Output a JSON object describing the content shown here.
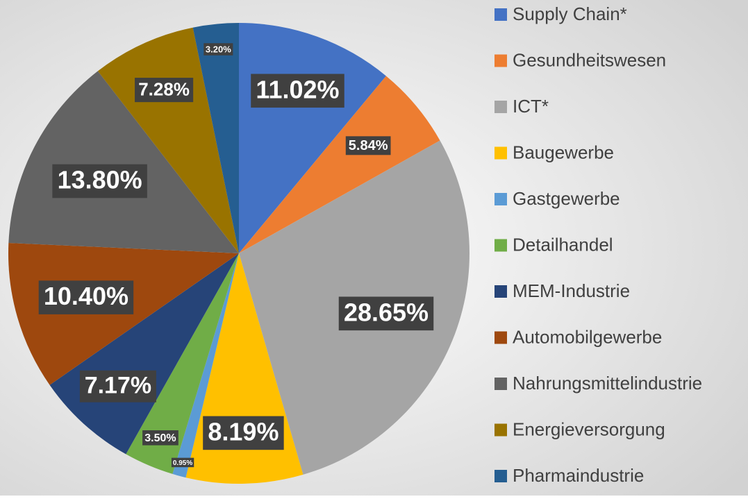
{
  "chart_data": {
    "type": "pie",
    "categories": [
      "Supply Chain*",
      "Gesundheitswesen",
      "ICT*",
      "Baugewerbe",
      "Gastgewerbe",
      "Detailhandel",
      "MEM-Industrie",
      "Automobilgewerbe",
      "Nahrungsmittelindustrie",
      "Energieversorgung",
      "Pharmaindustrie"
    ],
    "values": [
      11.02,
      5.84,
      28.65,
      8.19,
      0.95,
      3.5,
      7.17,
      10.4,
      13.8,
      7.28,
      3.2
    ],
    "value_labels": [
      "11.02%",
      "5.84%",
      "28.65%",
      "8.19%",
      "0.95%",
      "3.50%",
      "7.17%",
      "10.40%",
      "13.80%",
      "7.28%",
      "3.20%"
    ],
    "colors": [
      "#4472c4",
      "#ed7d31",
      "#a5a5a5",
      "#ffc000",
      "#5b9bd5",
      "#70ad47",
      "#264478",
      "#9e480e",
      "#636363",
      "#997300",
      "#255e91"
    ],
    "legend": "right"
  }
}
